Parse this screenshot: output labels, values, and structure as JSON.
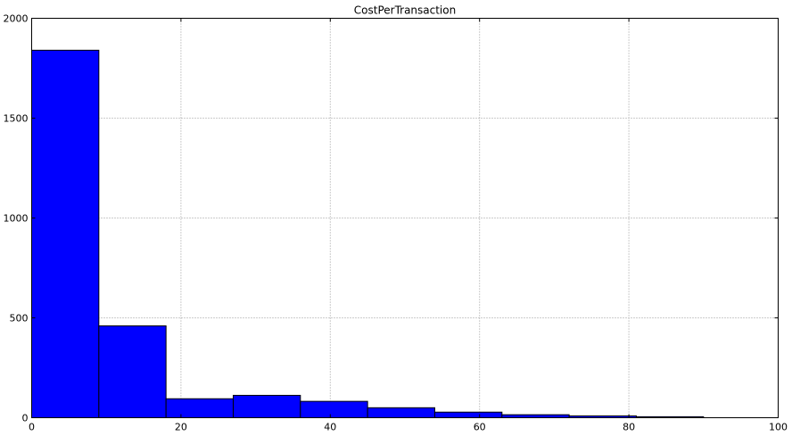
{
  "chart_data": {
    "type": "bar",
    "subtype": "histogram",
    "title": "CostPerTransaction",
    "xlabel": "",
    "ylabel": "",
    "xlim": [
      0,
      100
    ],
    "ylim": [
      0,
      2000
    ],
    "grid": true,
    "grid_style": "dotted",
    "bar_color": "#0000ff",
    "edge_color": "#000000",
    "x_ticks": [
      "0",
      "20",
      "40",
      "60",
      "80",
      "100"
    ],
    "y_ticks": [
      "0",
      "500",
      "1000",
      "1500",
      "2000"
    ],
    "x_tick_values": [
      0,
      20,
      40,
      60,
      80,
      100
    ],
    "y_tick_values": [
      0,
      500,
      1000,
      1500,
      2000
    ],
    "bins": [
      {
        "start": 0,
        "end": 9,
        "value": 1840
      },
      {
        "start": 9,
        "end": 18,
        "value": 460
      },
      {
        "start": 18,
        "end": 27,
        "value": 95
      },
      {
        "start": 27,
        "end": 36,
        "value": 112
      },
      {
        "start": 36,
        "end": 45,
        "value": 82
      },
      {
        "start": 45,
        "end": 54,
        "value": 50
      },
      {
        "start": 54,
        "end": 63,
        "value": 28
      },
      {
        "start": 63,
        "end": 72,
        "value": 15
      },
      {
        "start": 72,
        "end": 81,
        "value": 9
      },
      {
        "start": 81,
        "end": 90,
        "value": 5
      }
    ]
  }
}
